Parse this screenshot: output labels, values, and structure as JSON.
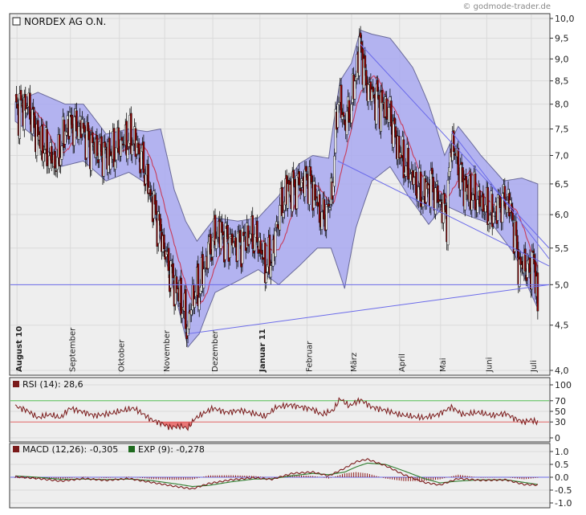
{
  "title": "NORDEX AG O.N.",
  "credit": "© godmode-trader.de",
  "colors": {
    "background": "#ffffff",
    "plot_bg": "#eeeeee",
    "band_fill": "#a8a8f0",
    "band_stroke": "#6a6a9a",
    "candle_up": "#ffffff",
    "candle_down": "#8b0000",
    "sma": "#c83c5a",
    "trendline": "#6b6bea",
    "rsi_line": "#7a1a1a",
    "rsi_70": "#3bb83b",
    "rsi_30": "#e05050",
    "rsi_fill": "#e86060",
    "macd_line": "#7a1a1a",
    "signal_line": "#2e7d2e",
    "hist": "#8b1a1a"
  },
  "chart_data": [
    {
      "id": "price",
      "type": "candlestick",
      "title": "NORDEX AG O.N.",
      "yscale": "log",
      "ylim": [
        4.0,
        10.0
      ],
      "yticks": [
        "10,0",
        "9,5",
        "9,0",
        "8,5",
        "8,0",
        "7,5",
        "7,0",
        "6,5",
        "6,0",
        "5,5",
        "5,0",
        "4,5",
        "4,0"
      ],
      "x_labels": [
        "August 10",
        "September",
        "Oktober",
        "November",
        "Dezember",
        "Januar 11",
        "Februar",
        "März",
        "April",
        "Mai",
        "Juni",
        "Juli"
      ],
      "bold_x_labels": [
        "August 10",
        "Januar 11"
      ],
      "close_anchors": [
        {
          "t": 0,
          "v": 7.9
        },
        {
          "t": 12,
          "v": 7.95
        },
        {
          "t": 18,
          "v": 7.45
        },
        {
          "t": 26,
          "v": 7.1
        },
        {
          "t": 36,
          "v": 6.85
        },
        {
          "t": 46,
          "v": 7.6
        },
        {
          "t": 58,
          "v": 7.55
        },
        {
          "t": 66,
          "v": 7.2
        },
        {
          "t": 76,
          "v": 7.05
        },
        {
          "t": 84,
          "v": 7.0
        },
        {
          "t": 94,
          "v": 7.25
        },
        {
          "t": 104,
          "v": 7.3
        },
        {
          "t": 112,
          "v": 6.9
        },
        {
          "t": 118,
          "v": 6.4
        },
        {
          "t": 126,
          "v": 5.85
        },
        {
          "t": 134,
          "v": 5.3
        },
        {
          "t": 140,
          "v": 5.0
        },
        {
          "t": 146,
          "v": 4.8
        },
        {
          "t": 152,
          "v": 4.45
        },
        {
          "t": 156,
          "v": 4.85
        },
        {
          "t": 162,
          "v": 4.95
        },
        {
          "t": 170,
          "v": 5.45
        },
        {
          "t": 178,
          "v": 5.75
        },
        {
          "t": 188,
          "v": 5.6
        },
        {
          "t": 196,
          "v": 5.55
        },
        {
          "t": 206,
          "v": 5.7
        },
        {
          "t": 214,
          "v": 5.6
        },
        {
          "t": 220,
          "v": 5.25
        },
        {
          "t": 226,
          "v": 5.35
        },
        {
          "t": 232,
          "v": 6.0
        },
        {
          "t": 240,
          "v": 6.4
        },
        {
          "t": 250,
          "v": 6.5
        },
        {
          "t": 258,
          "v": 6.6
        },
        {
          "t": 264,
          "v": 6.3
        },
        {
          "t": 270,
          "v": 5.95
        },
        {
          "t": 276,
          "v": 6.1
        },
        {
          "t": 280,
          "v": 6.6
        },
        {
          "t": 284,
          "v": 8.2
        },
        {
          "t": 290,
          "v": 7.6
        },
        {
          "t": 296,
          "v": 8.0
        },
        {
          "t": 300,
          "v": 8.7
        },
        {
          "t": 304,
          "v": 9.4
        },
        {
          "t": 308,
          "v": 8.5
        },
        {
          "t": 314,
          "v": 8.2
        },
        {
          "t": 322,
          "v": 8.0
        },
        {
          "t": 330,
          "v": 7.8
        },
        {
          "t": 336,
          "v": 7.2
        },
        {
          "t": 342,
          "v": 6.9
        },
        {
          "t": 350,
          "v": 6.6
        },
        {
          "t": 358,
          "v": 6.3
        },
        {
          "t": 366,
          "v": 6.5
        },
        {
          "t": 374,
          "v": 6.2
        },
        {
          "t": 380,
          "v": 6.0
        },
        {
          "t": 384,
          "v": 7.3
        },
        {
          "t": 390,
          "v": 6.8
        },
        {
          "t": 396,
          "v": 6.4
        },
        {
          "t": 404,
          "v": 6.3
        },
        {
          "t": 412,
          "v": 6.15
        },
        {
          "t": 420,
          "v": 6.0
        },
        {
          "t": 428,
          "v": 6.2
        },
        {
          "t": 434,
          "v": 6.25
        },
        {
          "t": 438,
          "v": 5.9
        },
        {
          "t": 444,
          "v": 5.2
        },
        {
          "t": 448,
          "v": 5.3
        },
        {
          "t": 452,
          "v": 5.15
        },
        {
          "t": 456,
          "v": 5.35
        },
        {
          "t": 460,
          "v": 4.8
        }
      ],
      "upper_band_anchors": [
        {
          "t": 0,
          "v": 8.05
        },
        {
          "t": 20,
          "v": 8.25
        },
        {
          "t": 44,
          "v": 8.0
        },
        {
          "t": 60,
          "v": 8.0
        },
        {
          "t": 80,
          "v": 7.4
        },
        {
          "t": 100,
          "v": 7.5
        },
        {
          "t": 116,
          "v": 7.45
        },
        {
          "t": 128,
          "v": 7.5
        },
        {
          "t": 140,
          "v": 6.4
        },
        {
          "t": 150,
          "v": 5.9
        },
        {
          "t": 160,
          "v": 5.6
        },
        {
          "t": 176,
          "v": 5.95
        },
        {
          "t": 196,
          "v": 5.9
        },
        {
          "t": 214,
          "v": 5.95
        },
        {
          "t": 232,
          "v": 6.3
        },
        {
          "t": 250,
          "v": 6.85
        },
        {
          "t": 262,
          "v": 7.0
        },
        {
          "t": 276,
          "v": 6.95
        },
        {
          "t": 286,
          "v": 8.5
        },
        {
          "t": 296,
          "v": 8.9
        },
        {
          "t": 304,
          "v": 9.7
        },
        {
          "t": 314,
          "v": 9.6
        },
        {
          "t": 330,
          "v": 9.5
        },
        {
          "t": 350,
          "v": 8.8
        },
        {
          "t": 364,
          "v": 8.0
        },
        {
          "t": 378,
          "v": 7.0
        },
        {
          "t": 390,
          "v": 7.55
        },
        {
          "t": 410,
          "v": 7.0
        },
        {
          "t": 430,
          "v": 6.55
        },
        {
          "t": 446,
          "v": 6.6
        },
        {
          "t": 460,
          "v": 6.5
        }
      ],
      "lower_band_anchors": [
        {
          "t": 0,
          "v": 7.65
        },
        {
          "t": 20,
          "v": 7.3
        },
        {
          "t": 40,
          "v": 6.8
        },
        {
          "t": 60,
          "v": 6.9
        },
        {
          "t": 80,
          "v": 6.55
        },
        {
          "t": 100,
          "v": 6.7
        },
        {
          "t": 116,
          "v": 6.5
        },
        {
          "t": 128,
          "v": 5.6
        },
        {
          "t": 140,
          "v": 4.9
        },
        {
          "t": 152,
          "v": 4.25
        },
        {
          "t": 162,
          "v": 4.4
        },
        {
          "t": 176,
          "v": 4.9
        },
        {
          "t": 196,
          "v": 5.05
        },
        {
          "t": 214,
          "v": 5.2
        },
        {
          "t": 232,
          "v": 5.0
        },
        {
          "t": 250,
          "v": 5.25
        },
        {
          "t": 266,
          "v": 5.5
        },
        {
          "t": 278,
          "v": 5.5
        },
        {
          "t": 290,
          "v": 4.95
        },
        {
          "t": 300,
          "v": 5.8
        },
        {
          "t": 314,
          "v": 6.55
        },
        {
          "t": 330,
          "v": 6.8
        },
        {
          "t": 346,
          "v": 6.3
        },
        {
          "t": 364,
          "v": 5.85
        },
        {
          "t": 378,
          "v": 6.15
        },
        {
          "t": 396,
          "v": 6.0
        },
        {
          "t": 420,
          "v": 5.85
        },
        {
          "t": 440,
          "v": 5.4
        },
        {
          "t": 452,
          "v": 4.95
        },
        {
          "t": 460,
          "v": 4.7
        }
      ],
      "trendlines": [
        {
          "from": {
            "t": 0,
            "v": 5.0
          },
          "to": {
            "t": 470,
            "v": 5.0
          }
        },
        {
          "from": {
            "t": 152,
            "v": 4.4
          },
          "to": {
            "t": 470,
            "v": 5.0
          }
        },
        {
          "from": {
            "t": 304,
            "v": 9.35
          },
          "to": {
            "t": 470,
            "v": 5.5
          }
        },
        {
          "from": {
            "t": 284,
            "v": 6.9
          },
          "to": {
            "t": 470,
            "v": 5.25
          }
        },
        {
          "from": {
            "t": 384,
            "v": 7.45
          },
          "to": {
            "t": 470,
            "v": 5.35
          }
        }
      ]
    },
    {
      "id": "rsi",
      "type": "line",
      "legend": "RSI (14): 28,6",
      "ylim": [
        0,
        100
      ],
      "yticks": [
        "100",
        "70",
        "50",
        "30",
        "0"
      ],
      "levels": [
        70,
        30
      ],
      "anchors": [
        {
          "t": 0,
          "v": 60
        },
        {
          "t": 10,
          "v": 52
        },
        {
          "t": 20,
          "v": 38
        },
        {
          "t": 30,
          "v": 44
        },
        {
          "t": 40,
          "v": 38
        },
        {
          "t": 48,
          "v": 56
        },
        {
          "t": 58,
          "v": 50
        },
        {
          "t": 70,
          "v": 42
        },
        {
          "t": 84,
          "v": 46
        },
        {
          "t": 96,
          "v": 52
        },
        {
          "t": 104,
          "v": 56
        },
        {
          "t": 112,
          "v": 46
        },
        {
          "t": 120,
          "v": 34
        },
        {
          "t": 128,
          "v": 28
        },
        {
          "t": 136,
          "v": 20
        },
        {
          "t": 146,
          "v": 22
        },
        {
          "t": 152,
          "v": 18
        },
        {
          "t": 158,
          "v": 36
        },
        {
          "t": 164,
          "v": 44
        },
        {
          "t": 174,
          "v": 56
        },
        {
          "t": 186,
          "v": 48
        },
        {
          "t": 198,
          "v": 52
        },
        {
          "t": 210,
          "v": 46
        },
        {
          "t": 220,
          "v": 40
        },
        {
          "t": 230,
          "v": 58
        },
        {
          "t": 242,
          "v": 62
        },
        {
          "t": 252,
          "v": 58
        },
        {
          "t": 262,
          "v": 54
        },
        {
          "t": 270,
          "v": 44
        },
        {
          "t": 280,
          "v": 52
        },
        {
          "t": 286,
          "v": 74
        },
        {
          "t": 294,
          "v": 60
        },
        {
          "t": 304,
          "v": 72
        },
        {
          "t": 314,
          "v": 58
        },
        {
          "t": 326,
          "v": 52
        },
        {
          "t": 338,
          "v": 44
        },
        {
          "t": 350,
          "v": 40
        },
        {
          "t": 360,
          "v": 38
        },
        {
          "t": 372,
          "v": 44
        },
        {
          "t": 384,
          "v": 58
        },
        {
          "t": 394,
          "v": 44
        },
        {
          "t": 408,
          "v": 48
        },
        {
          "t": 420,
          "v": 42
        },
        {
          "t": 432,
          "v": 46
        },
        {
          "t": 440,
          "v": 36
        },
        {
          "t": 448,
          "v": 30
        },
        {
          "t": 454,
          "v": 34
        },
        {
          "t": 460,
          "v": 29
        }
      ]
    },
    {
      "id": "macd",
      "type": "line",
      "legend_macd": "MACD (12,26): -0,305",
      "legend_exp": "EXP (9): -0,278",
      "ylim": [
        -1.0,
        1.0
      ],
      "yticks": [
        "1.0",
        "0.5",
        "0.0",
        "-0.5",
        "-1.0"
      ],
      "macd_anchors": [
        {
          "t": 0,
          "v": 0.02
        },
        {
          "t": 20,
          "v": -0.05
        },
        {
          "t": 40,
          "v": -0.15
        },
        {
          "t": 60,
          "v": -0.05
        },
        {
          "t": 80,
          "v": -0.12
        },
        {
          "t": 100,
          "v": -0.05
        },
        {
          "t": 120,
          "v": -0.2
        },
        {
          "t": 140,
          "v": -0.35
        },
        {
          "t": 156,
          "v": -0.45
        },
        {
          "t": 170,
          "v": -0.25
        },
        {
          "t": 190,
          "v": -0.1
        },
        {
          "t": 210,
          "v": -0.02
        },
        {
          "t": 226,
          "v": -0.08
        },
        {
          "t": 244,
          "v": 0.15
        },
        {
          "t": 262,
          "v": 0.2
        },
        {
          "t": 276,
          "v": 0.05
        },
        {
          "t": 290,
          "v": 0.35
        },
        {
          "t": 300,
          "v": 0.6
        },
        {
          "t": 310,
          "v": 0.7
        },
        {
          "t": 326,
          "v": 0.45
        },
        {
          "t": 342,
          "v": 0.1
        },
        {
          "t": 360,
          "v": -0.2
        },
        {
          "t": 374,
          "v": -0.3
        },
        {
          "t": 390,
          "v": -0.05
        },
        {
          "t": 410,
          "v": -0.12
        },
        {
          "t": 432,
          "v": -0.1
        },
        {
          "t": 448,
          "v": -0.28
        },
        {
          "t": 460,
          "v": -0.3
        }
      ],
      "signal_anchors": [
        {
          "t": 0,
          "v": 0.05
        },
        {
          "t": 20,
          "v": 0.0
        },
        {
          "t": 40,
          "v": -0.08
        },
        {
          "t": 60,
          "v": -0.07
        },
        {
          "t": 80,
          "v": -0.09
        },
        {
          "t": 100,
          "v": -0.07
        },
        {
          "t": 120,
          "v": -0.13
        },
        {
          "t": 140,
          "v": -0.25
        },
        {
          "t": 156,
          "v": -0.36
        },
        {
          "t": 170,
          "v": -0.32
        },
        {
          "t": 190,
          "v": -0.18
        },
        {
          "t": 210,
          "v": -0.07
        },
        {
          "t": 226,
          "v": -0.06
        },
        {
          "t": 244,
          "v": 0.06
        },
        {
          "t": 262,
          "v": 0.15
        },
        {
          "t": 276,
          "v": 0.1
        },
        {
          "t": 290,
          "v": 0.2
        },
        {
          "t": 300,
          "v": 0.4
        },
        {
          "t": 310,
          "v": 0.55
        },
        {
          "t": 326,
          "v": 0.5
        },
        {
          "t": 342,
          "v": 0.25
        },
        {
          "t": 360,
          "v": -0.05
        },
        {
          "t": 374,
          "v": -0.22
        },
        {
          "t": 390,
          "v": -0.15
        },
        {
          "t": 410,
          "v": -0.1
        },
        {
          "t": 432,
          "v": -0.1
        },
        {
          "t": 448,
          "v": -0.2
        },
        {
          "t": 460,
          "v": -0.28
        }
      ]
    }
  ]
}
